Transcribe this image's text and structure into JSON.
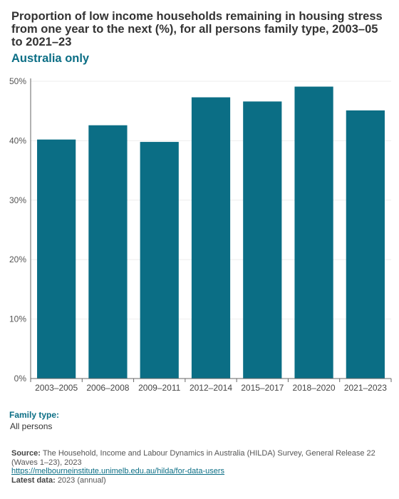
{
  "title": "Proportion of low income households remaining in housing stress from one year to the next (%), for all persons family type, 2003–05 to 2021–23",
  "subtitle": "Australia only",
  "filter": {
    "label": "Family type:",
    "value": "All persons"
  },
  "footer": {
    "source_label": "Source:",
    "source_text": "The Household, Income and Labour Dynamics in Australia (HILDA) Survey, General Release 22 (Waves 1–23), 2023",
    "link": "https://melbourneinstitute.unimelb.edu.au/hilda/for-data-users",
    "latest_label": "Latest data:",
    "latest_text": "2023 (annual)"
  },
  "colors": {
    "bar": "#0b6e85",
    "accent": "#0b6e85"
  },
  "chart_data": {
    "type": "bar",
    "categories": [
      "2003–2005",
      "2006–2008",
      "2009–2011",
      "2012–2014",
      "2015–2017",
      "2018–2020",
      "2021–2023"
    ],
    "values": [
      40.2,
      42.6,
      39.8,
      47.3,
      46.6,
      49.1,
      45.1
    ],
    "ylim": [
      0,
      50
    ],
    "yticks": [
      0,
      10,
      20,
      30,
      40,
      50
    ],
    "ytick_labels": [
      "0%",
      "10%",
      "20%",
      "30%",
      "40%",
      "50%"
    ],
    "xlabel": "",
    "ylabel": "",
    "grid": true
  }
}
